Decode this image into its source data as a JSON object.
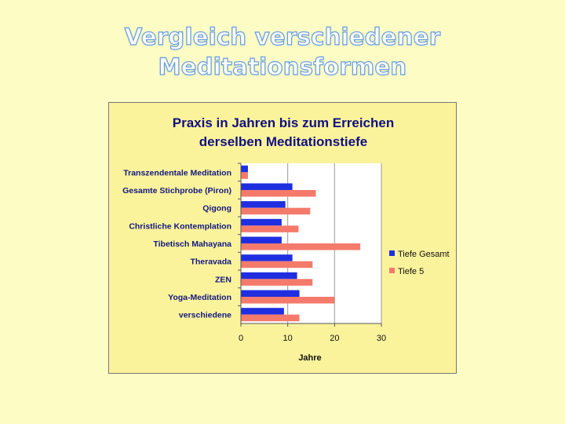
{
  "slide": {
    "title_line1": "Vergleich verschiedener",
    "title_line2": "Meditationsformen"
  },
  "chart_data": {
    "type": "bar",
    "orientation": "horizontal",
    "title_line1": "Praxis in Jahren bis zum Erreichen",
    "title_line2": "derselben Meditationstiefe",
    "xlabel": "Jahre",
    "ylabel": "",
    "categories": [
      "Transzendentale Meditation",
      "Gesamte Stichprobe (Piron)",
      "Qigong",
      "Christliche Kontemplation",
      "Tibetisch Mahayana",
      "Theravada",
      "ZEN",
      "Yoga-Meditation",
      "verschiedene"
    ],
    "series": [
      {
        "name": "Tiefe Gesamt",
        "color": "#1f2fe0",
        "values": [
          1.5,
          11,
          9.5,
          8.7,
          8.7,
          11,
          12,
          12.5,
          9.2
        ]
      },
      {
        "name": "Tiefe 5",
        "color": "#f47a6c",
        "values": [
          1.5,
          16,
          14.8,
          12.3,
          25.5,
          15.3,
          15.3,
          20,
          12.5
        ]
      }
    ],
    "xlim": [
      0,
      30
    ],
    "xticks": [
      "0",
      "10",
      "20",
      "30"
    ],
    "grid": true,
    "legend_position": "right"
  }
}
